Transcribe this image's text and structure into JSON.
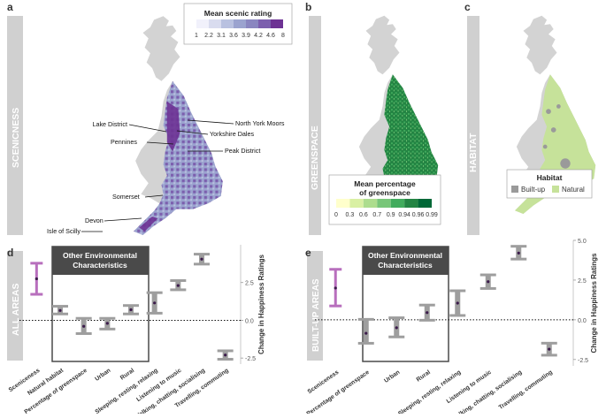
{
  "panels": {
    "a": {
      "letter": "a",
      "side_label": "SCENICNESS",
      "legend_title": "Mean scenic rating",
      "legend_ticks": [
        "1",
        "2.2",
        "3.1",
        "3.6",
        "3.9",
        "4.2",
        "4.6",
        "8"
      ],
      "legend_colors": [
        "#f1f1fb",
        "#d9dcef",
        "#b9c1e0",
        "#9ba3cf",
        "#8a86c0",
        "#7c5fae",
        "#6d3293"
      ],
      "places": [
        "Lake District",
        "North York Moors",
        "Yorkshire Dales",
        "Pennines",
        "Peak District",
        "Somerset",
        "Devon",
        "Isle of Scilly"
      ]
    },
    "b": {
      "letter": "b",
      "side_label": "GREENSPACE",
      "legend_title_line1": "Mean percentage",
      "legend_title_line2": "of greenspace",
      "legend_ticks": [
        "0",
        "0.3",
        "0.6",
        "0.7",
        "0.9",
        "0.94",
        "0.96",
        "0.99"
      ],
      "legend_colors": [
        "#ffffcc",
        "#d9f0a3",
        "#addd8e",
        "#78c679",
        "#41ab5d",
        "#238443",
        "#006837"
      ]
    },
    "c": {
      "letter": "c",
      "side_label": "HABITAT",
      "legend_title": "Habitat",
      "legend_items": [
        "Built-up",
        "Natural"
      ],
      "legend_colors": {
        "built_up": "#9a9a9a",
        "natural": "#c6e29a"
      }
    },
    "d": {
      "letter": "d",
      "side_label": "ALL AREAS",
      "box_title_line1": "Other Environmental",
      "box_title_line2": "Characteristics"
    },
    "e": {
      "letter": "e",
      "side_label": "BUILT-UP AREAS",
      "box_title_line1": "Other Environmental",
      "box_title_line2": "Characteristics"
    }
  },
  "colors": {
    "scenic": "#b86fbd",
    "other": "#9e9e9e",
    "sidebar": "#d0d0d0",
    "header": "#4a4a4a",
    "land": "#d3d3d3"
  },
  "chart_data": [
    {
      "type": "scatter",
      "panel": "d",
      "title": "All areas",
      "ylabel": "Change in Happiness Ratings",
      "ylim": [
        -2.9,
        5.0
      ],
      "yticks": [
        "-2.5",
        "0.0",
        "2.5"
      ],
      "categories": [
        "Sceniceness",
        "Natural habitat",
        "Percentage of greenspace",
        "Urban",
        "Rural",
        "Sleeping, resting, relaxing",
        "Listening to music",
        "Talking, chatting, socialising",
        "Travelling, commuting"
      ],
      "estimates": [
        2.75,
        0.65,
        -0.4,
        -0.2,
        0.7,
        1.15,
        2.3,
        4.05,
        -2.3
      ],
      "ci_low": [
        1.75,
        0.45,
        -0.85,
        -0.55,
        0.45,
        0.5,
        2.05,
        3.75,
        -2.55
      ],
      "ci_high": [
        3.75,
        0.9,
        0.1,
        0.1,
        0.95,
        1.8,
        2.6,
        4.35,
        -2.05
      ],
      "boxed_categories": [
        "Natural habitat",
        "Percentage of greenspace",
        "Urban",
        "Rural"
      ]
    },
    {
      "type": "scatter",
      "panel": "e",
      "title": "Built-up areas",
      "ylabel": "Change in Happiness Ratings",
      "ylim": [
        -2.9,
        5.0
      ],
      "yticks": [
        "-2.5",
        "0.0",
        "2.5",
        "5.0"
      ],
      "categories": [
        "Sceniceness",
        "Percentage of greenspace",
        "Urban",
        "Rural",
        "Sleeping, resting, relaxing",
        "Listening to music",
        "Talking, chatting, socialising",
        "Travelling, commuting"
      ],
      "estimates": [
        2.0,
        -0.85,
        -0.5,
        0.45,
        1.05,
        2.4,
        4.2,
        -1.85
      ],
      "ci_low": [
        0.9,
        -1.45,
        -1.05,
        0.0,
        0.3,
        2.0,
        3.85,
        -2.2
      ],
      "ci_high": [
        3.15,
        0.0,
        0.1,
        0.9,
        1.8,
        2.8,
        4.6,
        -1.5
      ],
      "boxed_categories": [
        "Percentage of greenspace",
        "Urban",
        "Rural"
      ]
    }
  ]
}
